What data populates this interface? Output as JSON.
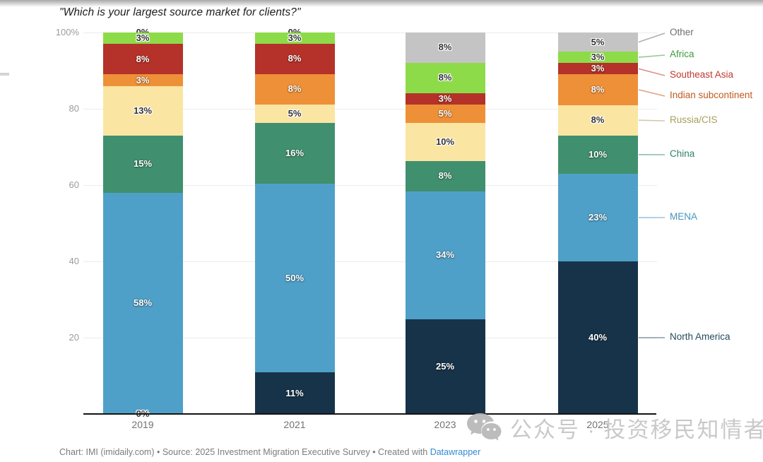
{
  "title": "\"Which is your largest source market for clients?\"",
  "chart_data": {
    "type": "bar",
    "stacked": true,
    "unit": "%",
    "title": "\"Which is your largest source market for clients?\"",
    "categories": [
      "2019",
      "2021",
      "2023",
      "2025"
    ],
    "y_axis": {
      "ticks": [
        "100%",
        "80",
        "60",
        "40",
        "20"
      ],
      "tick_values": [
        100,
        80,
        60,
        40,
        20
      ],
      "range": [
        0,
        100
      ],
      "grid": true
    },
    "legend_position": "right",
    "series_order": "top-to-bottom of stack",
    "series": [
      {
        "name": "Other",
        "color": "#C4C4C4",
        "legend_color": "#6E6E6E",
        "label_style": "dark",
        "values": [
          0,
          0,
          8,
          5
        ]
      },
      {
        "name": "Africa",
        "color": "#8EDB4A",
        "legend_color": "#3F9B3B",
        "label_style": "dark",
        "values": [
          3,
          3,
          8,
          3
        ]
      },
      {
        "name": "Southeast Asia",
        "color": "#B43229",
        "legend_color": "#C03A2E",
        "label_style": "light",
        "values": [
          8,
          8,
          3,
          3
        ]
      },
      {
        "name": "Indian subcontinent",
        "color": "#EE9038",
        "legend_color": "#C05A1E",
        "label_style": "light",
        "values": [
          3,
          8,
          5,
          8
        ]
      },
      {
        "name": "Russia/CIS",
        "color": "#FAE5A2",
        "legend_color": "#A79F5C",
        "label_style": "dark",
        "values": [
          13,
          5,
          10,
          8
        ]
      },
      {
        "name": "China",
        "color": "#40906F",
        "legend_color": "#2F8468",
        "label_style": "light",
        "values": [
          15,
          16,
          8,
          10
        ]
      },
      {
        "name": "MENA",
        "color": "#4FA0C8",
        "legend_color": "#4795BE",
        "label_style": "light",
        "values": [
          58,
          50,
          34,
          23
        ]
      },
      {
        "name": "North America",
        "color": "#17334A",
        "legend_color": "#274A60",
        "label_style": "light",
        "values": [
          0,
          11,
          25,
          40
        ]
      }
    ],
    "data_labels": "each segment labeled with its percentage"
  },
  "footer": {
    "prefix": "Chart: IMI (imidaily.com) • Source: 2025 Investment Migration Executive Survey • Created with ",
    "link_label": "Datawrapper"
  },
  "watermark": {
    "text": "公众号 · 投资移民知情者"
  }
}
